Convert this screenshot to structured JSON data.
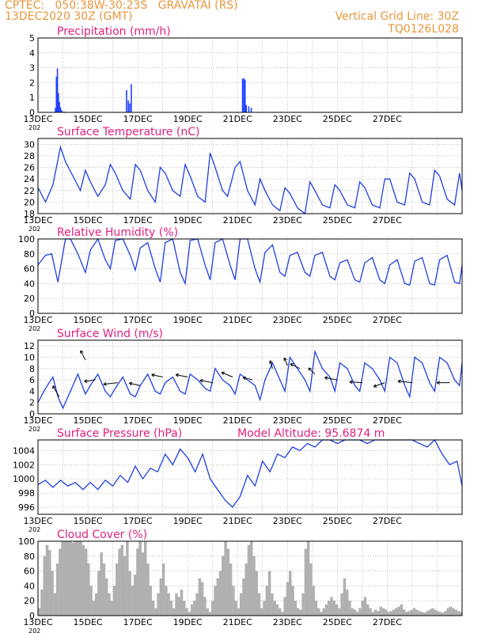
{
  "header": {
    "line1": "CPTEC:   050:38W-30:23S   GRAVATAI (RS)",
    "line2": "13DEC2020 30Z (GMT)",
    "grid_note": "Vertical Grid Line: 30Z",
    "model_id": "TQ0126L028"
  },
  "colors": {
    "header": "#e8963c",
    "title": "#e0207f",
    "line": "#1f3fe0",
    "bar": "#2040ff",
    "cloud": "#b0b0b0",
    "grid": "#999999"
  },
  "x_axis": {
    "tick_labels": [
      "13DEC",
      "15DEC",
      "17DEC",
      "19DEC",
      "21DEC",
      "23DEC",
      "25DEC",
      "27DEC"
    ],
    "year_fragment": "202"
  },
  "chart_data": [
    {
      "id": "precip",
      "type": "bar",
      "title": "Precipitation (mm/h)",
      "ylim": [
        0,
        5
      ],
      "yticks": [
        0,
        1,
        2,
        3,
        4,
        5
      ],
      "x": [
        0.7,
        0.74,
        0.78,
        0.82,
        0.86,
        0.9,
        0.95,
        1.05,
        3.55,
        3.62,
        3.68,
        3.74,
        8.2,
        8.25,
        8.3,
        8.35,
        8.45,
        8.55
      ],
      "values": [
        0.3,
        2.4,
        2.95,
        1.3,
        0.7,
        0.35,
        0.15,
        0.05,
        1.5,
        0.8,
        0.6,
        1.9,
        2.25,
        2.3,
        2.2,
        0.5,
        0.4,
        0.3
      ]
    },
    {
      "id": "temp",
      "type": "line",
      "title": "Surface Temperature (nC)",
      "ylim": [
        18,
        31
      ],
      "yticks": [
        18,
        20,
        22,
        24,
        26,
        28,
        30
      ],
      "x": [
        0,
        0.3,
        0.6,
        0.9,
        1.1,
        1.4,
        1.7,
        1.9,
        2.1,
        2.4,
        2.7,
        2.9,
        3.1,
        3.4,
        3.7,
        3.9,
        4.1,
        4.4,
        4.7,
        4.9,
        5.1,
        5.4,
        5.7,
        5.9,
        6.1,
        6.4,
        6.7,
        6.9,
        7.1,
        7.4,
        7.6,
        7.9,
        8.1,
        8.4,
        8.7,
        8.9,
        9.1,
        9.4,
        9.7,
        9.9,
        10.1,
        10.4,
        10.7,
        10.9,
        11.1,
        11.4,
        11.7,
        11.9,
        12.1,
        12.4,
        12.7,
        12.9,
        13.1,
        13.4,
        13.7,
        13.9,
        14.1,
        14.4,
        14.7,
        14.9,
        15.1,
        15.4,
        15.7,
        15.9,
        16.1,
        16.4,
        16.7,
        16.9,
        17
      ],
      "values": [
        22.5,
        20,
        23,
        29.5,
        27,
        24.5,
        22,
        25.5,
        23.5,
        21,
        23,
        26.5,
        25,
        22,
        20.5,
        26.5,
        25.5,
        22,
        20,
        26,
        25,
        22,
        21,
        26.5,
        24.5,
        21,
        20,
        28.5,
        26,
        22,
        21,
        26,
        27,
        22,
        19.5,
        24,
        22,
        19.5,
        18.5,
        22.5,
        21.5,
        19,
        18,
        23.5,
        22,
        19.5,
        19,
        23,
        22,
        19.5,
        19,
        23.5,
        22.5,
        19.5,
        19,
        24,
        24,
        20,
        19.5,
        25,
        24,
        20,
        19.5,
        25.5,
        24.5,
        20.5,
        19.5,
        25,
        22
      ]
    },
    {
      "id": "rh",
      "type": "line",
      "title": "Relative Humidity (%)",
      "ylim": [
        0,
        100
      ],
      "yticks": [
        0,
        20,
        40,
        60,
        80,
        100
      ],
      "x": [
        0,
        0.3,
        0.55,
        0.8,
        1.1,
        1.3,
        1.6,
        1.9,
        2.1,
        2.4,
        2.7,
        2.9,
        3.1,
        3.4,
        3.7,
        3.9,
        4.1,
        4.4,
        4.7,
        4.9,
        5.1,
        5.4,
        5.7,
        5.9,
        6.1,
        6.4,
        6.7,
        6.9,
        7.1,
        7.4,
        7.7,
        7.9,
        8.1,
        8.4,
        8.7,
        8.9,
        9.1,
        9.4,
        9.7,
        9.9,
        10.1,
        10.4,
        10.7,
        10.9,
        11.1,
        11.4,
        11.7,
        11.9,
        12.1,
        12.4,
        12.7,
        12.9,
        13.1,
        13.4,
        13.7,
        13.9,
        14.1,
        14.4,
        14.7,
        14.9,
        15.1,
        15.4,
        15.7,
        15.9,
        16.1,
        16.4,
        16.7,
        16.9,
        17
      ],
      "values": [
        65,
        78,
        80,
        42,
        100,
        100,
        80,
        55,
        85,
        100,
        72,
        60,
        98,
        100,
        78,
        58,
        88,
        95,
        60,
        42,
        95,
        100,
        55,
        40,
        98,
        100,
        65,
        45,
        95,
        100,
        65,
        45,
        100,
        100,
        60,
        42,
        82,
        92,
        55,
        50,
        78,
        82,
        55,
        50,
        78,
        82,
        50,
        45,
        68,
        72,
        45,
        42,
        68,
        75,
        45,
        40,
        65,
        72,
        40,
        38,
        70,
        75,
        40,
        38,
        72,
        78,
        42,
        40,
        65
      ]
    },
    {
      "id": "wind",
      "type": "line",
      "title": "Surface Wind (m/s)",
      "ylim": [
        0,
        13
      ],
      "yticks": [
        0,
        2,
        4,
        6,
        8,
        10,
        12
      ],
      "x": [
        0,
        0.3,
        0.6,
        0.8,
        1.0,
        1.3,
        1.6,
        1.9,
        2.1,
        2.4,
        2.7,
        2.9,
        3.1,
        3.4,
        3.7,
        3.9,
        4.1,
        4.4,
        4.7,
        4.9,
        5.1,
        5.4,
        5.7,
        5.9,
        6.1,
        6.4,
        6.7,
        6.9,
        7.1,
        7.4,
        7.7,
        7.9,
        8.1,
        8.4,
        8.7,
        8.9,
        9.1,
        9.4,
        9.7,
        9.9,
        10.1,
        10.4,
        10.7,
        10.9,
        11.1,
        11.4,
        11.7,
        11.9,
        12.1,
        12.4,
        12.7,
        12.9,
        13.1,
        13.4,
        13.7,
        13.9,
        14.1,
        14.4,
        14.7,
        14.9,
        15.1,
        15.4,
        15.7,
        15.9,
        16.1,
        16.4,
        16.7,
        16.9,
        17
      ],
      "values": [
        2,
        4.5,
        6.5,
        3,
        1,
        4,
        7,
        3.5,
        5,
        7,
        4,
        3,
        4.5,
        6.5,
        3.5,
        3,
        5,
        7,
        4,
        3.5,
        5.5,
        6.5,
        4,
        3.5,
        7,
        6,
        4.5,
        4,
        8,
        6,
        5,
        3.5,
        7,
        6,
        5,
        2.5,
        6,
        9,
        6,
        4,
        10,
        8,
        6,
        4,
        11,
        8,
        6.5,
        4,
        9,
        8,
        5,
        4,
        9,
        8,
        6,
        4,
        10,
        9,
        5,
        3,
        10,
        9,
        5.5,
        4,
        10,
        9,
        6,
        5,
        9
      ]
    },
    {
      "id": "pressure",
      "type": "line",
      "title": "Surface Pressure (hPa)",
      "subtitle": "Model Altitude: 95.6874 m",
      "ylim": [
        995,
        1005.5
      ],
      "yticks": [
        996,
        998,
        1000,
        1002,
        1004
      ],
      "x": [
        0,
        0.3,
        0.6,
        0.9,
        1.2,
        1.5,
        1.8,
        2.1,
        2.4,
        2.7,
        3.0,
        3.3,
        3.6,
        3.9,
        4.2,
        4.5,
        4.8,
        5.1,
        5.4,
        5.7,
        6.0,
        6.3,
        6.6,
        6.9,
        7.2,
        7.5,
        7.8,
        8.1,
        8.4,
        8.7,
        9.0,
        9.3,
        9.6,
        9.9,
        10.2,
        10.5,
        10.8,
        11.1,
        11.4,
        11.7,
        12.0,
        12.3,
        12.6,
        12.9,
        13.2,
        13.5,
        13.8,
        14.1,
        14.4,
        14.7,
        15.0,
        15.3,
        15.6,
        15.9,
        16.2,
        16.5,
        16.8,
        17
      ],
      "values": [
        999.2,
        999.8,
        998.8,
        999.8,
        999.0,
        999.5,
        998.5,
        999.5,
        998.5,
        999.8,
        999.0,
        1000.5,
        999.5,
        1001.8,
        1000.0,
        1001.5,
        1001.0,
        1003.5,
        1002.0,
        1004.2,
        1003.0,
        1001.0,
        1003.5,
        1000.0,
        998.5,
        997.0,
        996.0,
        997.5,
        1000.5,
        999.0,
        1002.5,
        1001.0,
        1003.5,
        1003.0,
        1004.5,
        1004.0,
        1005.0,
        1004.5,
        1005.5,
        1006.0,
        1005.0,
        1006.0,
        1005.5,
        1006.0,
        1005.0,
        1006.5,
        1006.0,
        1006.5,
        1005.5,
        1006.0,
        1006.5,
        1005.0,
        1004.5,
        1005.5,
        1003.5,
        1002.0,
        1002.5,
        999.0
      ]
    },
    {
      "id": "cloud",
      "type": "bar",
      "title": "Cloud Cover (%)",
      "ylim": [
        0,
        100
      ],
      "yticks": [
        0,
        20,
        40,
        60,
        80,
        100
      ],
      "values": [
        10,
        35,
        80,
        95,
        88,
        60,
        30,
        70,
        90,
        100,
        100,
        100,
        100,
        98,
        100,
        100,
        100,
        95,
        90,
        70,
        40,
        20,
        30,
        60,
        85,
        70,
        50,
        30,
        20,
        40,
        70,
        90,
        95,
        80,
        100,
        60,
        40,
        55,
        90,
        100,
        85,
        100,
        70,
        40,
        20,
        10,
        30,
        50,
        70,
        40,
        30,
        20,
        10,
        30,
        25,
        35,
        20,
        10,
        5,
        15,
        20,
        30,
        50,
        45,
        25,
        10,
        5,
        20,
        40,
        50,
        60,
        80,
        100,
        90,
        70,
        40,
        20,
        10,
        30,
        50,
        70,
        95,
        100,
        80,
        60,
        30,
        10,
        20,
        40,
        60,
        30,
        20,
        15,
        10,
        5,
        25,
        45,
        60,
        40,
        20,
        10,
        8,
        30,
        90,
        100,
        70,
        40,
        20,
        10,
        5,
        10,
        15,
        20,
        25,
        20,
        15,
        10,
        30,
        50,
        35,
        20,
        10,
        8,
        5,
        10,
        20,
        25,
        15,
        10,
        5,
        8,
        6,
        12,
        10,
        8,
        5,
        6,
        8,
        10,
        12,
        15,
        8,
        5,
        6,
        8,
        10,
        8,
        6,
        5,
        4,
        6,
        8,
        10,
        8,
        6,
        5,
        4,
        6,
        10,
        12,
        10,
        8,
        6,
        5
      ]
    }
  ]
}
